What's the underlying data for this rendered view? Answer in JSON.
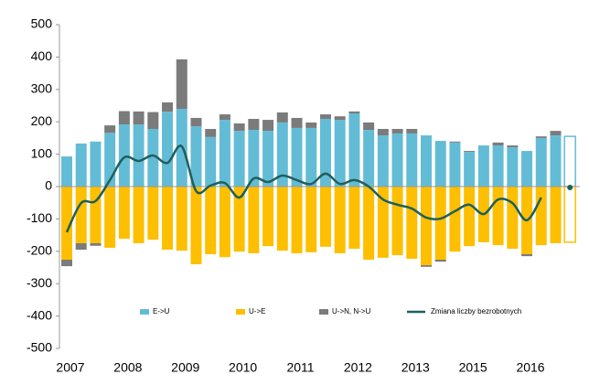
{
  "chart_data": {
    "type": "bar",
    "categories": [
      "2007",
      null,
      null,
      null,
      "2008",
      null,
      null,
      null,
      "2009",
      null,
      null,
      null,
      "2010",
      null,
      null,
      null,
      "2011",
      null,
      null,
      null,
      "2012",
      null,
      null,
      null,
      "2013",
      null,
      null,
      null,
      "2015",
      null,
      null,
      null,
      "2016",
      null,
      null,
      null
    ],
    "series": [
      {
        "name": "E->U",
        "color": "#63bcd6",
        "values": [
          93,
          133,
          139,
          166,
          192,
          192,
          178,
          231,
          240,
          186,
          153,
          206,
          172,
          175,
          172,
          198,
          181,
          181,
          209,
          206,
          226,
          175,
          158,
          164,
          164,
          158,
          141,
          136,
          107,
          127,
          127,
          121,
          110,
          150,
          158,
          155
        ]
      },
      {
        "name": "U->E",
        "color": "#fdbf00",
        "values": [
          -226,
          -175,
          -175,
          -189,
          -161,
          -175,
          -164,
          -195,
          -198,
          -240,
          -209,
          -218,
          -201,
          -206,
          -184,
          -198,
          -206,
          -203,
          -186,
          -206,
          -192,
          -226,
          -220,
          -212,
          -223,
          -243,
          -226,
          -201,
          -184,
          -172,
          -181,
          -192,
          -209,
          -181,
          -175,
          -172
        ]
      },
      {
        "name": "U->N,  N->U",
        "color": "#7b7b7b",
        "values": [
          0,
          0,
          0,
          23,
          41,
          40,
          52,
          29,
          153,
          26,
          25,
          17,
          23,
          34,
          34,
          31,
          31,
          17,
          14,
          11,
          6,
          23,
          20,
          14,
          14,
          0,
          0,
          3,
          3,
          0,
          9,
          6,
          0,
          5,
          14,
          0
        ]
      },
      {
        "color": "#7b7b7b",
        "values": [
          -20,
          -20,
          -8,
          0,
          0,
          0,
          0,
          0,
          0,
          0,
          0,
          0,
          0,
          0,
          0,
          0,
          0,
          0,
          0,
          0,
          0,
          0,
          0,
          0,
          0,
          -5,
          -6,
          0,
          0,
          0,
          0,
          0,
          -6,
          0,
          0,
          0
        ]
      },
      {
        "name": "Zmiana liczby bezrobotnych",
        "type": "line",
        "color": "#1f5f5b",
        "values": [
          -141,
          -51,
          -45,
          20,
          90,
          79,
          96,
          73,
          124,
          -14,
          3,
          11,
          -34,
          25,
          14,
          34,
          20,
          8,
          40,
          8,
          20,
          0,
          -40,
          -56,
          -68,
          -96,
          -99,
          -76,
          -56,
          -85,
          -40,
          -51,
          -104,
          -34,
          null,
          -3
        ]
      }
    ],
    "outline_last": true,
    "ylim": [
      -500,
      500
    ],
    "yticks": [
      -500,
      -400,
      -300,
      -200,
      -100,
      0,
      100,
      200,
      300,
      400,
      500
    ],
    "grid": false
  }
}
